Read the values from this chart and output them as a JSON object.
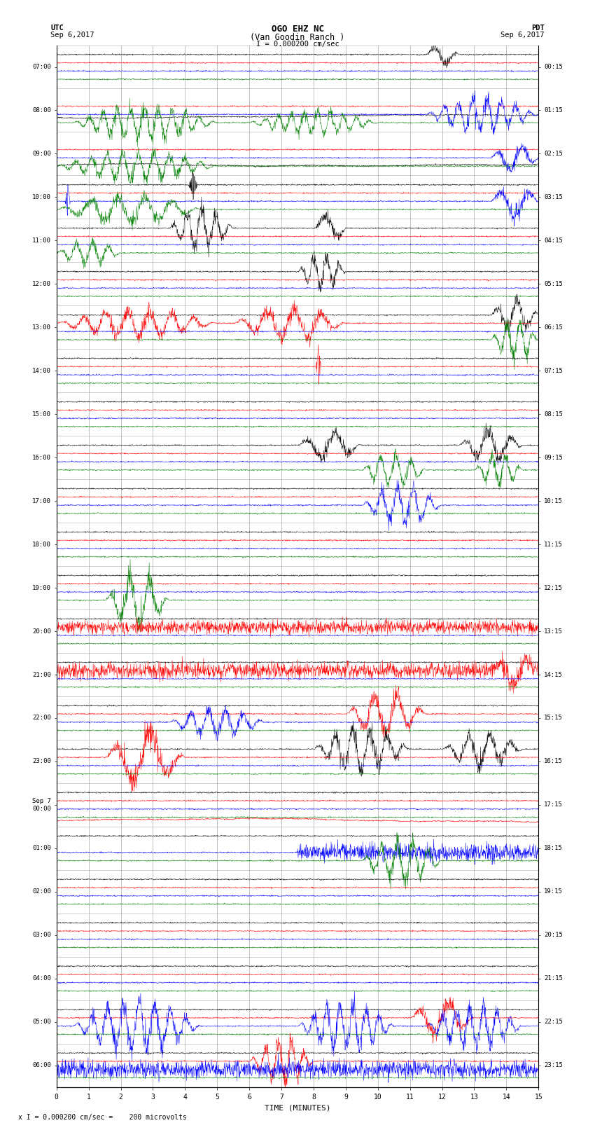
{
  "title_line1": "OGO EHZ NC",
  "title_line2": "(Van Goodin Ranch )",
  "scale_label": "I = 0.000200 cm/sec",
  "footer_label": "x I = 0.000200 cm/sec =    200 microvolts",
  "left_header_line1": "UTC",
  "left_header_line2": "Sep 6,2017",
  "right_header_line1": "PDT",
  "right_header_line2": "Sep 6,2017",
  "xlabel": "TIME (MINUTES)",
  "left_times": [
    "07:00",
    "08:00",
    "09:00",
    "10:00",
    "11:00",
    "12:00",
    "13:00",
    "14:00",
    "15:00",
    "16:00",
    "17:00",
    "18:00",
    "19:00",
    "20:00",
    "21:00",
    "22:00",
    "23:00",
    "Sep 7\n00:00",
    "01:00",
    "02:00",
    "03:00",
    "04:00",
    "05:00",
    "06:00"
  ],
  "right_times": [
    "00:15",
    "01:15",
    "02:15",
    "03:15",
    "04:15",
    "05:15",
    "06:15",
    "07:15",
    "08:15",
    "09:15",
    "10:15",
    "11:15",
    "12:15",
    "13:15",
    "14:15",
    "15:15",
    "16:15",
    "17:15",
    "18:15",
    "19:15",
    "20:15",
    "21:15",
    "22:15",
    "23:15"
  ],
  "n_rows": 24,
  "traces_per_row": 4,
  "colors": [
    "black",
    "red",
    "blue",
    "green"
  ],
  "bg_color": "white",
  "grid_color": "#aaaaaa",
  "noise_scale": 0.012,
  "seed": 42
}
